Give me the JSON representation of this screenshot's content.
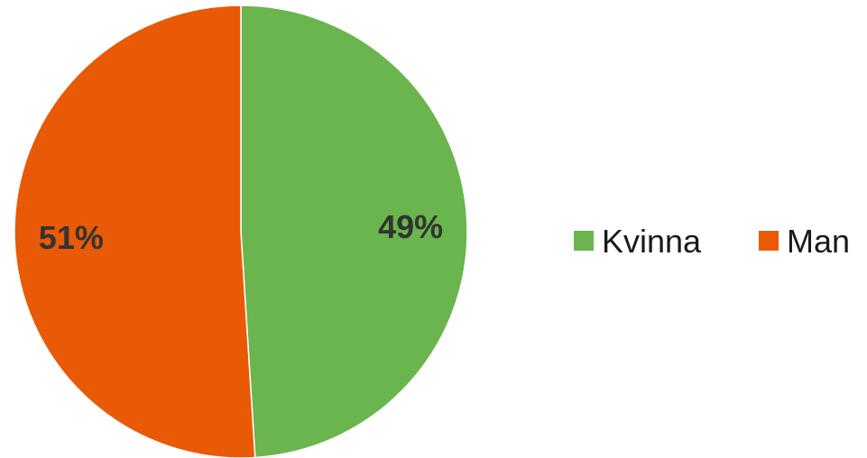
{
  "chart_data": {
    "type": "pie",
    "categories": [
      "Kvinna",
      "Man"
    ],
    "values": [
      49,
      51
    ],
    "labels": [
      "49%",
      "51%"
    ],
    "colors": [
      "#6ab54d",
      "#e85a05"
    ],
    "legend": {
      "placement": "right",
      "entries": [
        "Kvinna",
        "Man"
      ]
    }
  }
}
